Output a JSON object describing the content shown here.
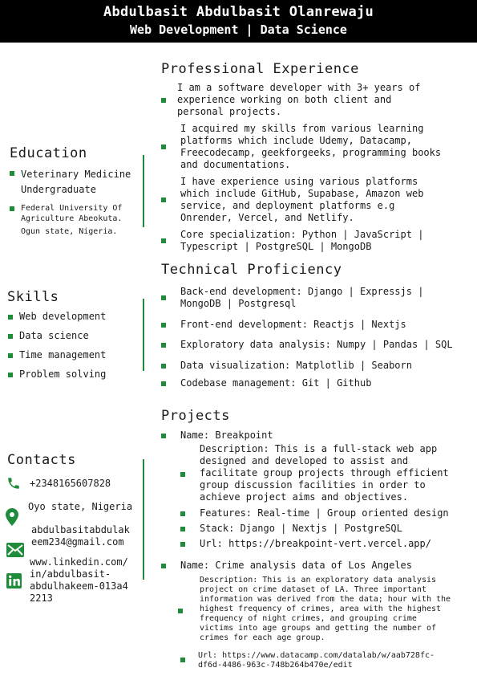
{
  "header": {
    "name": "Abdulbasit Abdulbasit Olanrewaju",
    "subtitle": "Web Development | Data Science"
  },
  "accent_color": "#1e8c3a",
  "education": {
    "title": "Education",
    "degree_lines": [
      "Veterinary Medicine",
      "Undergraduate"
    ],
    "school_lines": [
      "Federal University Of",
      "Agriculture Abeokuta.",
      "Ogun state, Nigeria."
    ]
  },
  "skills": {
    "title": "Skills",
    "items": [
      "Web development",
      "Data science",
      "Time management",
      "Problem solving"
    ]
  },
  "contacts": {
    "title": "Contacts",
    "phone": "+2348165607828",
    "location": "Oyo state, Nigeria",
    "email_lines": [
      "abdulbasitabdulak",
      "eem234@gmail.com"
    ],
    "linkedin_lines": [
      "www.linkedin.com/",
      "in/abdulbasit-",
      "abdulhakeem-013a4",
      "2213"
    ],
    "icons": [
      "phone-icon",
      "location-pin-icon",
      "mail-icon",
      "linkedin-icon"
    ]
  },
  "experience": {
    "title": "Professional Experience",
    "items": [
      [
        "I am a software developer with 3+ years of",
        "experience working on both client and",
        "personal projects."
      ],
      [
        "I acquired my skills from various learning",
        "platforms which include Udemy, Datacamp,",
        "Freecodecamp, geekforgeeks, programming books",
        "and documentations."
      ],
      [
        "I have experience using various platforms",
        "which include GitHub, Supabase, Amazon web",
        "service, and deployment platforms e.g",
        "Onrender, Vercel, and Netlify."
      ],
      [
        "Core specialization: Python | JavaScript |",
        "Typescript | PostgreSQL | MongoDB"
      ]
    ]
  },
  "proficiency": {
    "title": "Technical Proficiency",
    "items": [
      [
        "Back-end development: Django | Expressjs |",
        "MongoDB | Postgresql"
      ],
      [
        "Front-end development: Reactjs | Nextjs"
      ],
      [
        "Exploratory data analysis: Numpy | Pandas | SQL"
      ],
      [
        "Data visualization: Matplotlib | Seaborn"
      ],
      [
        "Codebase management: Git | Github"
      ]
    ]
  },
  "projects": {
    "title": "Projects",
    "p1": {
      "name": "Name: Breakpoint",
      "description": [
        "Description: This is a full-stack web app",
        "designed and developed to assist and",
        "facilitate group projects through efficient",
        "group discussion facilities in order to",
        "achieve project aims and objectives."
      ],
      "features": "Features: Real-time | Group oriented design",
      "stack": "Stack: Django | Nextjs | PostgreSQL",
      "url": "Url: https://breakpoint-vert.vercel.app/"
    },
    "p2": {
      "name": "Name: Crime analysis data of Los Angeles",
      "description": [
        "Description: This is an exploratory data analysis",
        "project on crime dataset of LA. Three important",
        "information was derived from the data; hour with the",
        "highest frequency of crimes, area with the highest",
        "frequency of night crimes, and grouping crime",
        "victims into age groups and getting the number of",
        "crimes for each age group."
      ],
      "url": [
        "Url: https://www.datacamp.com/datalab/w/aab728fc-",
        "df6d-4486-963c-748b264b470e/edit"
      ]
    }
  }
}
